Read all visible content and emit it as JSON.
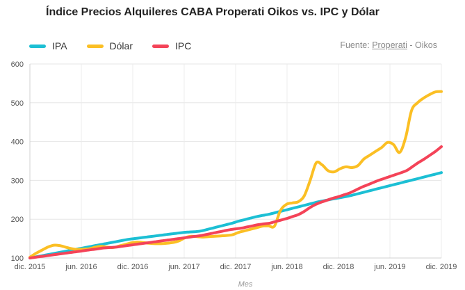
{
  "header": {
    "title": "Índice Precios Alquileres CABA Properati Oikos vs. IPC y Dólar",
    "source_prefix": "Fuente: ",
    "source_link": "Properati",
    "source_suffix": " - Oikos"
  },
  "chart_data": {
    "type": "line",
    "title": "Índice Precios Alquileres CABA Properati Oikos vs. IPC y Dólar",
    "xlabel": "Mes",
    "ylabel": "",
    "ylim": [
      100,
      600
    ],
    "yticks": [
      100,
      200,
      300,
      400,
      500,
      600
    ],
    "x_start": "dic. 2015",
    "x_end": "dic. 2019",
    "xtick_labels": [
      "dic. 2015",
      "jun. 2016",
      "dic. 2016",
      "jun. 2017",
      "dic. 2017",
      "jun. 2018",
      "dic. 2018",
      "jun. 2019",
      "dic. 2019"
    ],
    "legend_position": "top-left",
    "grid": true,
    "series": [
      {
        "name": "IPA",
        "color": "#1cbfd4",
        "values": [
          100,
          103,
          106,
          109,
          112,
          115,
          118,
          121,
          124,
          127,
          130,
          133,
          136,
          139,
          142,
          145,
          148,
          150,
          152,
          154,
          156,
          158,
          160,
          162,
          164,
          166,
          167,
          168,
          170,
          174,
          178,
          182,
          186,
          190,
          195,
          199,
          203,
          207,
          210,
          213,
          217,
          221,
          225,
          229,
          233,
          237,
          241,
          245,
          248,
          251,
          254,
          257,
          260,
          264,
          268,
          272,
          276,
          280,
          284,
          288,
          292,
          296,
          300,
          304,
          308,
          312,
          316,
          320
        ]
      },
      {
        "name": "Dólar",
        "color": "#fbbf24",
        "values": [
          102,
          112,
          120,
          128,
          133,
          132,
          128,
          124,
          122,
          123,
          124,
          128,
          130,
          128,
          127,
          131,
          135,
          139,
          141,
          140,
          138,
          137,
          137,
          138,
          140,
          144,
          152,
          156,
          155,
          154,
          155,
          156,
          157,
          158,
          160,
          166,
          170,
          174,
          178,
          182,
          183,
          182,
          222,
          238,
          242,
          245,
          260,
          300,
          345,
          340,
          325,
          322,
          330,
          335,
          333,
          338,
          355,
          365,
          375,
          385,
          398,
          392,
          372,
          410,
          480,
          500,
          512,
          521,
          528,
          529
        ]
      },
      {
        "name": "IPC",
        "color": "#f44358",
        "values": [
          100,
          102,
          104,
          106,
          108,
          110,
          112,
          114,
          116,
          118,
          120,
          122,
          124,
          126,
          127,
          128,
          130,
          132,
          134,
          136,
          138,
          140,
          142,
          144,
          146,
          148,
          150,
          152,
          154,
          156,
          158,
          161,
          164,
          167,
          170,
          173,
          175,
          177,
          180,
          183,
          186,
          188,
          190,
          194,
          198,
          202,
          207,
          212,
          220,
          230,
          238,
          244,
          249,
          254,
          258,
          263,
          268,
          275,
          282,
          288,
          294,
          300,
          305,
          310,
          315,
          320,
          326,
          336,
          346,
          355,
          365,
          375,
          387
        ]
      }
    ]
  }
}
